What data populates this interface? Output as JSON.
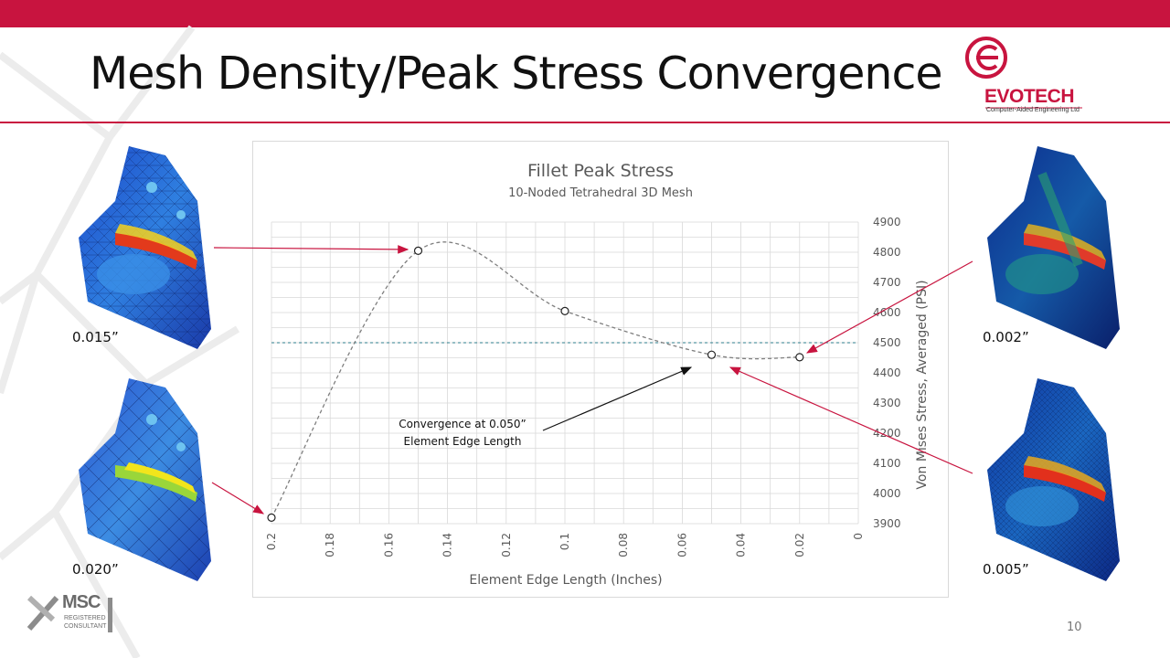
{
  "slide": {
    "title": "Mesh Density/Peak Stress Convergence",
    "page_number": "10",
    "accent_color": "#c8143f"
  },
  "logo": {
    "name": "EVOTECH",
    "tagline": "Computer-Aided Engineering Ltd",
    "color": "#c8143f"
  },
  "badge": {
    "line1": "MSC",
    "line2": "REGISTERED",
    "line3": "CONSULTANT"
  },
  "meshes": {
    "top_left_label": "0.015”",
    "bottom_left_label": "0.020”",
    "top_right_label": "0.002”",
    "bottom_right_label": "0.005”"
  },
  "chart_data": {
    "type": "scatter",
    "title": "Fillet Peak Stress",
    "subtitle": "10-Noded Tetrahedral 3D Mesh",
    "xlabel": "Element Edge Length (Inches)",
    "ylabel": "Von Mises Stress, Averaged (PSI)",
    "xlim": [
      0.2,
      0
    ],
    "ylim": [
      3900,
      4900
    ],
    "x_reversed": true,
    "x_ticks": [
      "0.2",
      "0.18",
      "0.16",
      "0.14",
      "0.12",
      "0.1",
      "0.08",
      "0.06",
      "0.04",
      "0.02",
      "0"
    ],
    "y_ticks": [
      "3900",
      "4000",
      "4100",
      "4200",
      "4300",
      "4400",
      "4500",
      "4600",
      "4700",
      "4800",
      "4900"
    ],
    "y_axis_side": "right",
    "grid": true,
    "smoothed_line": true,
    "points": [
      {
        "x": 0.2,
        "y": 3920
      },
      {
        "x": 0.15,
        "y": 4805
      },
      {
        "x": 0.1,
        "y": 4605
      },
      {
        "x": 0.05,
        "y": 4460
      },
      {
        "x": 0.02,
        "y": 4452
      }
    ],
    "reference_line": {
      "y": 4500
    },
    "annotation": {
      "line1": "Convergence at 0.050”",
      "line2": "Element Edge Length"
    },
    "colors": {
      "series": "#7f7f7f",
      "reference": "#2e7d8c",
      "grid": "#d9d9d9"
    }
  }
}
